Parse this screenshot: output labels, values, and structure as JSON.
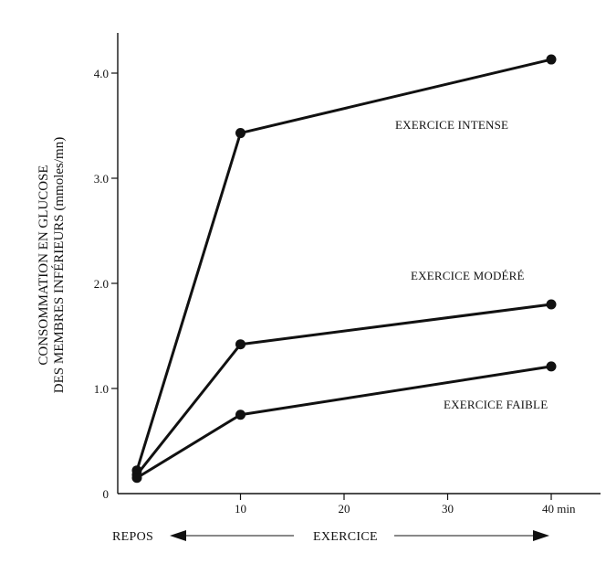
{
  "chart_data": {
    "type": "line",
    "ylabel_line1": "CONSOMMATION EN GLUCOSE",
    "ylabel_line2": "DES MEMBRES INFÉRIEURS (mmoles/mn)",
    "x_ticks": [
      {
        "value": 10,
        "label": "10"
      },
      {
        "value": 20,
        "label": "20"
      },
      {
        "value": 30,
        "label": "30"
      },
      {
        "value": 40,
        "label": "40 min"
      }
    ],
    "y_ticks": [
      {
        "value": 0,
        "label": "0"
      },
      {
        "value": 1,
        "label": "1.0"
      },
      {
        "value": 2,
        "label": "2.0"
      },
      {
        "value": 3,
        "label": "3.0"
      },
      {
        "value": 4,
        "label": "4.0"
      }
    ],
    "xlim": [
      0,
      44
    ],
    "ylim": [
      0,
      4.5
    ],
    "series": [
      {
        "name": "EXERCICE INTENSE",
        "x": [
          0,
          10,
          40
        ],
        "y": [
          0.22,
          3.43,
          4.13
        ]
      },
      {
        "name": "EXERCICE MODÉRÉ",
        "x": [
          0,
          10,
          40
        ],
        "y": [
          0.18,
          1.42,
          1.8
        ]
      },
      {
        "name": "EXERCICE FAIBLE",
        "x": [
          0,
          10,
          40
        ],
        "y": [
          0.15,
          0.75,
          1.21
        ]
      }
    ],
    "phase_labels": {
      "rest": "REPOS",
      "exercise": "EXERCICE"
    },
    "grid": false,
    "color": "#111111"
  }
}
